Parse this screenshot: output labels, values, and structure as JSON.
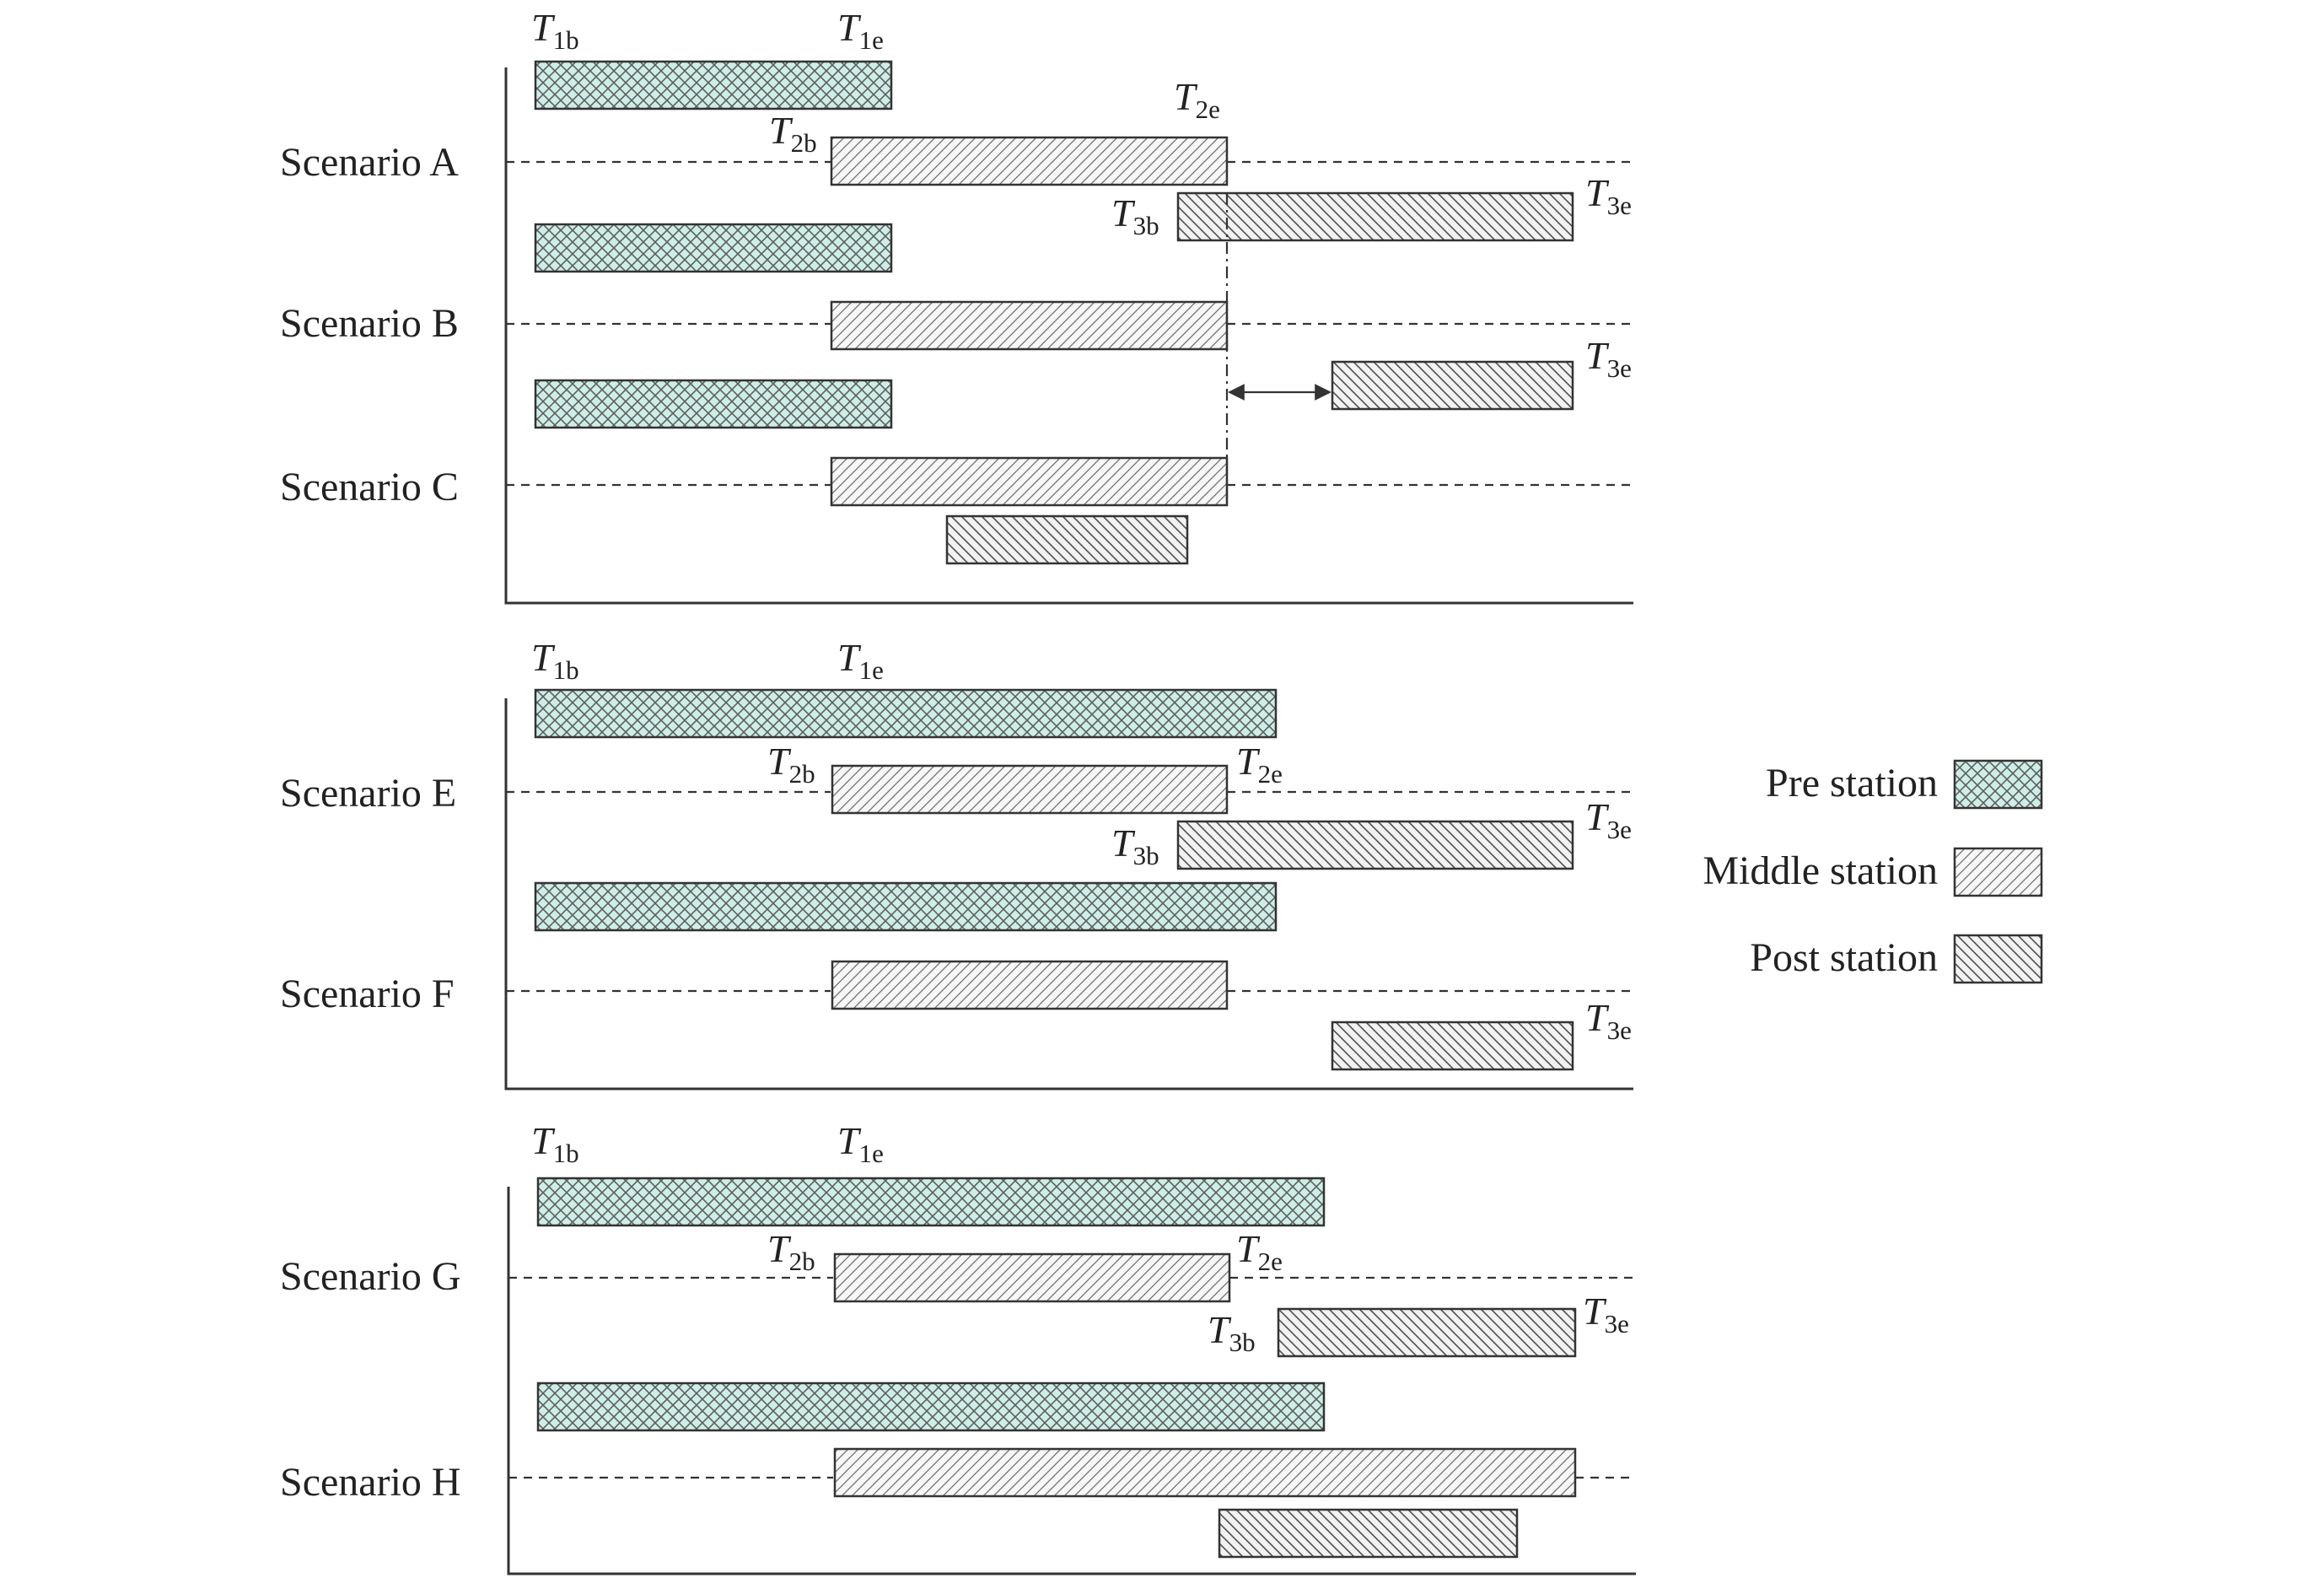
{
  "colors": {
    "pre_fill": "#cdeee6",
    "pre_hatch": "#5f5f5f",
    "mid_fill": "#f7f7f7",
    "post_fill": "#f2f2f2",
    "line": "#333333"
  },
  "legend": {
    "items": [
      {
        "key": "pre",
        "label": "Pre station"
      },
      {
        "key": "mid",
        "label": "Middle station"
      },
      {
        "key": "post",
        "label": "Post station"
      }
    ]
  },
  "timing": {
    "T1b": {
      "main": "T",
      "sub": "1b"
    },
    "T1e": {
      "main": "T",
      "sub": "1e"
    },
    "T2b": {
      "main": "T",
      "sub": "2b"
    },
    "T2e": {
      "main": "T",
      "sub": "2e"
    },
    "T3b": {
      "main": "T",
      "sub": "3b"
    },
    "T3e": {
      "main": "T",
      "sub": "3e"
    }
  },
  "panels": [
    {
      "id": "top",
      "scenarios": [
        {
          "name": "Scenario A"
        },
        {
          "name": "Scenario B"
        },
        {
          "name": "Scenario C"
        }
      ]
    },
    {
      "id": "middle",
      "scenarios": [
        {
          "name": "Scenario E"
        },
        {
          "name": "Scenario F"
        }
      ]
    },
    {
      "id": "bottom",
      "scenarios": [
        {
          "name": "Scenario G"
        },
        {
          "name": "Scenario H"
        }
      ]
    }
  ]
}
